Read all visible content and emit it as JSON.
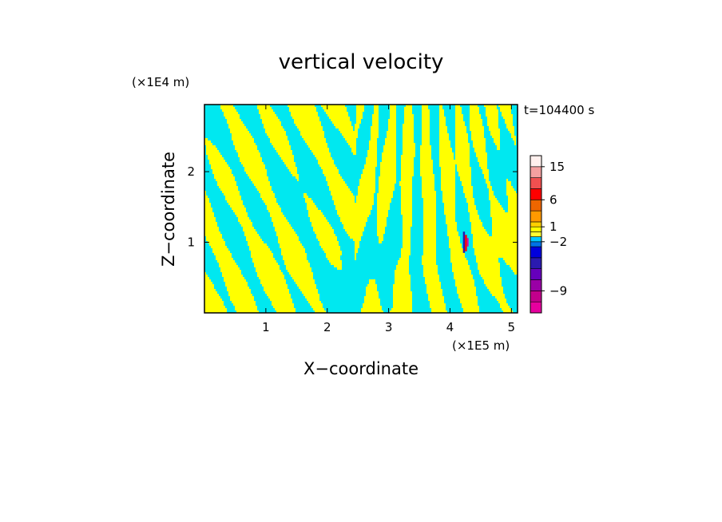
{
  "chart_data": {
    "type": "heatmap",
    "title": "vertical velocity",
    "xlabel": "X−coordinate",
    "ylabel": "Z−coordinate",
    "x_unit": "(×1E5 m)",
    "y_unit": "(×1E4 m)",
    "time_label": "t=104400 s",
    "xlim": [
      0.0,
      5.1
    ],
    "ylim": [
      0.0,
      2.95
    ],
    "x_ticks": [
      {
        "value": 1,
        "label": "1"
      },
      {
        "value": 2,
        "label": "2"
      },
      {
        "value": 3,
        "label": "3"
      },
      {
        "value": 4,
        "label": "4"
      },
      {
        "value": 5,
        "label": "5"
      }
    ],
    "y_ticks": [
      {
        "value": 1,
        "label": "1"
      },
      {
        "value": 2,
        "label": "2"
      }
    ],
    "field_colors": {
      "positive": "#ffff00",
      "negative": "#00e8f0"
    },
    "feature": {
      "x": 4.25,
      "z_min": 0.85,
      "z_max": 1.15
    },
    "colorbar": {
      "levels": [
        {
          "color": "#e6009e"
        },
        {
          "color": "#c2008c"
        },
        {
          "color": "#9a00a6"
        },
        {
          "color": "#6600bb"
        },
        {
          "color": "#2a1ab0"
        },
        {
          "color": "#0000dd"
        },
        {
          "color": "#0072e6"
        },
        {
          "color": "#00c8ff"
        },
        {
          "color": "#ffff33"
        },
        {
          "color": "#ffff00"
        },
        {
          "color": "#ffd000"
        },
        {
          "color": "#ff9a00"
        },
        {
          "color": "#ee6600"
        },
        {
          "color": "#ff0000"
        },
        {
          "color": "#f05050"
        },
        {
          "color": "#f4a0a0"
        },
        {
          "color": "#fff0ee"
        }
      ],
      "labels": [
        {
          "label": "−9",
          "level_index": 1
        },
        {
          "label": "−2",
          "level_index": 6
        },
        {
          "label": "1",
          "level_index": 9
        },
        {
          "label": "6",
          "level_index": 12
        },
        {
          "label": "15",
          "level_index": 15
        }
      ]
    }
  }
}
